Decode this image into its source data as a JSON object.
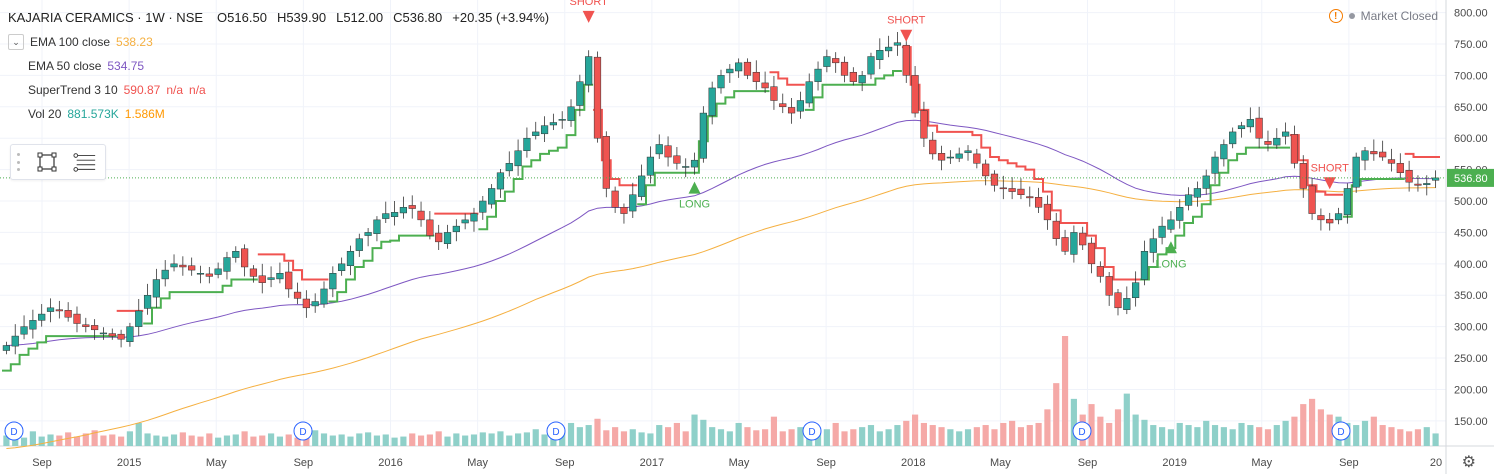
{
  "header": {
    "symbol": "KAJARIA CERAMICS · 1W · NSE",
    "o_label": "O",
    "o_value": "516.50",
    "h_label": "H",
    "h_value": "539.90",
    "l_label": "L",
    "l_value": "512.00",
    "c_label": "C",
    "c_value": "536.80",
    "change": "+20.35 (+3.94%)"
  },
  "indicators": [
    {
      "name": "EMA 100 close",
      "values": [
        "538.23"
      ],
      "colors": [
        "#f5b041"
      ]
    },
    {
      "name": "EMA 50 close",
      "values": [
        "534.75"
      ],
      "colors": [
        "#7e57c2"
      ]
    },
    {
      "name": "SuperTrend 3 10",
      "values": [
        "590.87",
        "n/a",
        "n/a"
      ],
      "colors": [
        "#f05350",
        "#f05350",
        "#f05350"
      ]
    },
    {
      "name": "Vol 20",
      "values": [
        "881.573K",
        "1.586M"
      ],
      "colors": [
        "#26a69a",
        "#ff9800"
      ]
    }
  ],
  "status": {
    "market": "Market Closed",
    "warning_icon": "!"
  },
  "toolbar": {
    "items": [
      "rectangle-tool-icon",
      "lines-tool-icon"
    ]
  },
  "colors": {
    "up": "#26a69a",
    "down": "#ef5350",
    "st_up": "#4caf50",
    "st_down": "#f05350",
    "ema100": "#f5b041",
    "ema50": "#7e57c2",
    "vol_up": "#8fd0c9",
    "vol_down": "#f5a9a7",
    "grid": "#f0f3fa",
    "price_tag": "#4caf50"
  },
  "chart_data": {
    "type": "candlestick",
    "title": "KAJARIA CERAMICS · 1W · NSE",
    "ylim": [
      110,
      820
    ],
    "y_ticks": [
      150,
      200,
      250,
      300,
      350,
      400,
      450,
      500,
      550,
      600,
      650,
      700,
      750,
      800
    ],
    "y_tick_labels": [
      "150.00",
      "200.00",
      "250.00",
      "300.00",
      "350.00",
      "400.00",
      "450.00",
      "500.00",
      "550.00",
      "600.00",
      "650.00",
      "700.00",
      "750.00",
      "800.00"
    ],
    "x_tick_labels": [
      "Sep",
      "2015",
      "May",
      "Sep",
      "2016",
      "May",
      "Sep",
      "2017",
      "May",
      "Sep",
      "2018",
      "May",
      "Sep",
      "2019",
      "May",
      "Sep",
      "20"
    ],
    "last_price": "536.80",
    "close_series": [
      270,
      285,
      300,
      310,
      320,
      330,
      325,
      315,
      305,
      300,
      295,
      290,
      285,
      280,
      300,
      325,
      350,
      375,
      390,
      400,
      395,
      390,
      385,
      380,
      392,
      410,
      420,
      395,
      380,
      370,
      378,
      385,
      360,
      345,
      330,
      340,
      360,
      385,
      400,
      420,
      440,
      450,
      470,
      480,
      482,
      490,
      488,
      470,
      445,
      435,
      450,
      460,
      470,
      480,
      500,
      520,
      545,
      560,
      580,
      600,
      610,
      620,
      625,
      630,
      650,
      690,
      730,
      600,
      520,
      490,
      480,
      510,
      540,
      570,
      590,
      570,
      560,
      555,
      565,
      640,
      680,
      700,
      710,
      720,
      700,
      690,
      680,
      660,
      650,
      640,
      660,
      690,
      710,
      730,
      720,
      700,
      690,
      700,
      730,
      740,
      745,
      752,
      700,
      640,
      600,
      575,
      565,
      570,
      575,
      580,
      560,
      540,
      525,
      520,
      515,
      510,
      505,
      490,
      470,
      440,
      420,
      450,
      430,
      400,
      380,
      350,
      330,
      345,
      370,
      420,
      440,
      460,
      470,
      490,
      510,
      520,
      540,
      570,
      590,
      610,
      620,
      630,
      600,
      590,
      600,
      610,
      560,
      520,
      480,
      470,
      465,
      480,
      520,
      570,
      580,
      575,
      570,
      560,
      545,
      530,
      525,
      528,
      536.8
    ],
    "supertrend": {
      "up_segments": "support line below price during LONG phases",
      "down_segments": "resistance line above price during SHORT phases"
    },
    "annotations": [
      {
        "text": "SHORT",
        "kind": "short",
        "series_index": 66
      },
      {
        "text": "LONG",
        "kind": "long",
        "series_index": 78
      },
      {
        "text": "SHORT",
        "kind": "short",
        "series_index": 102
      },
      {
        "text": "LONG",
        "kind": "long",
        "series_index": 132
      },
      {
        "text": "SHORT",
        "kind": "short",
        "series_index": 150
      }
    ],
    "dividend_markers": [
      "D",
      "D",
      "D",
      "D",
      "D",
      "D"
    ],
    "volume_series": [
      10,
      12,
      8,
      14,
      9,
      11,
      10,
      13,
      9,
      12,
      15,
      10,
      11,
      9,
      14,
      22,
      12,
      10,
      9,
      11,
      13,
      10,
      9,
      12,
      8,
      10,
      11,
      14,
      9,
      10,
      12,
      9,
      11,
      8,
      13,
      15,
      12,
      10,
      11,
      9,
      12,
      13,
      10,
      11,
      8,
      9,
      12,
      10,
      11,
      14,
      9,
      12,
      10,
      11,
      13,
      12,
      14,
      10,
      12,
      13,
      16,
      11,
      12,
      14,
      22,
      18,
      20,
      26,
      15,
      18,
      14,
      16,
      13,
      12,
      20,
      18,
      22,
      14,
      30,
      25,
      18,
      16,
      14,
      22,
      18,
      15,
      16,
      28,
      14,
      16,
      18,
      20,
      15,
      16,
      22,
      14,
      16,
      18,
      20,
      14,
      16,
      20,
      24,
      30,
      22,
      20,
      18,
      16,
      14,
      16,
      18,
      20,
      16,
      22,
      24,
      18,
      20,
      22,
      35,
      60,
      105,
      45,
      30,
      40,
      28,
      22,
      35,
      50,
      30,
      25,
      20,
      18,
      16,
      22,
      20,
      18,
      24,
      20,
      18,
      16,
      22,
      20,
      18,
      16,
      20,
      24,
      28,
      40,
      45,
      35,
      30,
      28,
      22,
      20,
      24,
      28,
      20,
      18,
      16,
      14,
      16,
      18,
      12
    ]
  }
}
